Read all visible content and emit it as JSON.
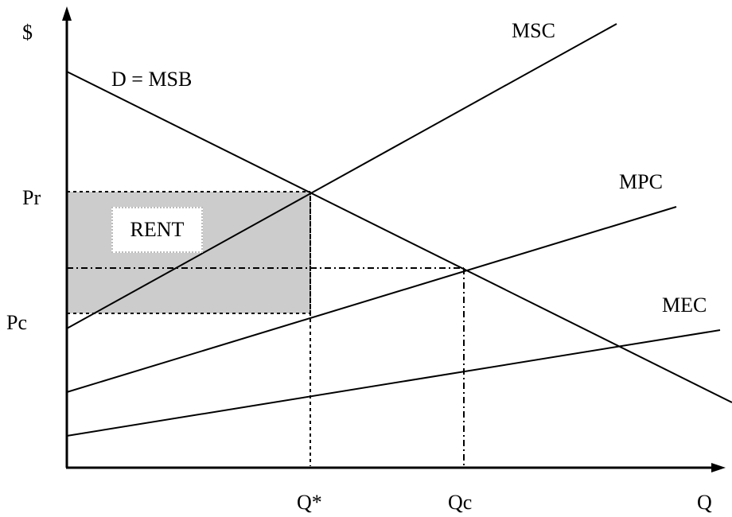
{
  "labels": {
    "y_axis": "$",
    "x_axis": "Q",
    "msc": "MSC",
    "demand": "D = MSB",
    "mpc": "MPC",
    "mec": "MEC",
    "pr": "Pr",
    "pc": "Pc",
    "q_star": "Q*",
    "qc": "Qc",
    "rent": "RENT"
  },
  "colors": {
    "line": "#000000",
    "rent_fill": "#cccccc",
    "background": "#ffffff"
  }
}
